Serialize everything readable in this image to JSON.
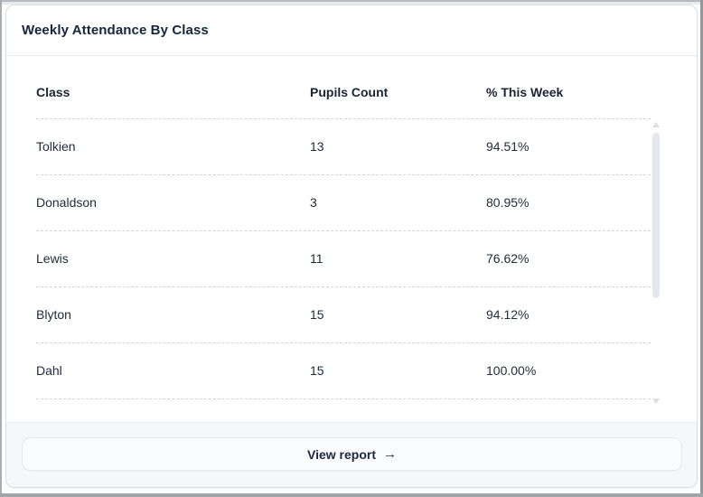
{
  "card": {
    "title": "Weekly Attendance By Class",
    "footer": {
      "view_report_label": "View report",
      "arrow_icon": "→"
    }
  },
  "table": {
    "columns": [
      "Class",
      "Pupils Count",
      "% This Week"
    ],
    "rows": [
      {
        "class": "Tolkien",
        "pupils": "13",
        "pct": "94.51%"
      },
      {
        "class": "Donaldson",
        "pupils": "3",
        "pct": "80.95%"
      },
      {
        "class": "Lewis",
        "pupils": "11",
        "pct": "76.62%"
      },
      {
        "class": "Blyton",
        "pupils": "15",
        "pct": "94.12%"
      },
      {
        "class": "Dahl",
        "pupils": "15",
        "pct": "100.00%"
      }
    ]
  },
  "scrollbar": {
    "orientation": "vertical"
  },
  "colors": {
    "text_dark": "#1c2940",
    "card_border": "#d9dce2",
    "dashed_divider": "#d5d5d9",
    "footer_bg": "#f6f7f9",
    "button_bg": "#fafbfd",
    "scrollbar_thumb": "#e6e7ec"
  }
}
